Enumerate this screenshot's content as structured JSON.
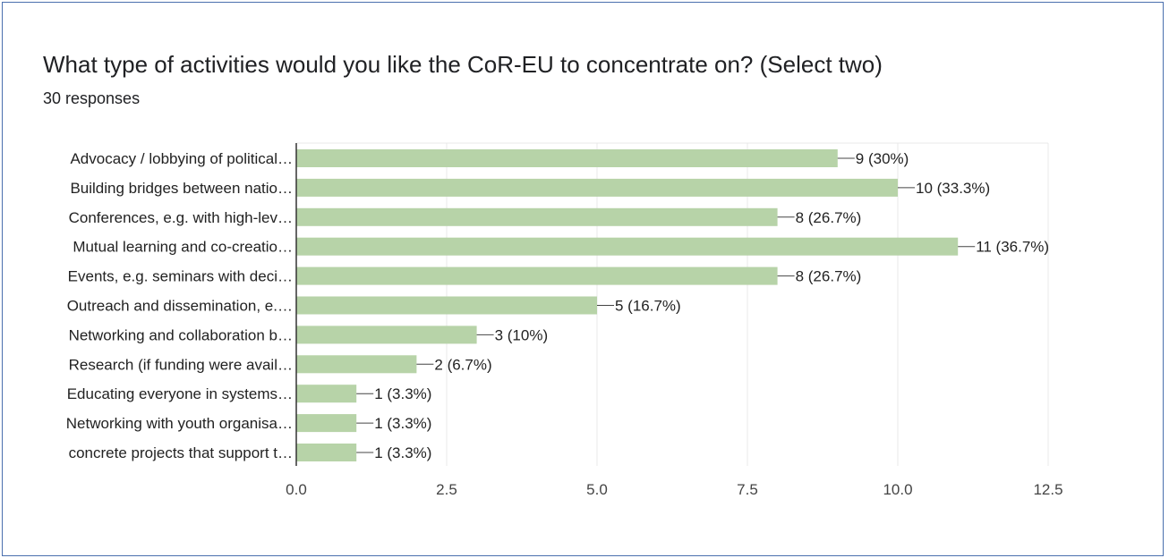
{
  "header": {
    "title": "What type of activities would you like the CoR-EU to concentrate on? (Select two)",
    "responses": "30 responses"
  },
  "colors": {
    "bar": "#b7d3a8",
    "axis": "#333333",
    "grid": "#e8e8e8",
    "text": "#222222"
  },
  "chart_data": {
    "type": "bar",
    "orientation": "horizontal",
    "title": "What type of activities would you like the CoR-EU to concentrate on? (Select two)",
    "subtitle": "30 responses",
    "xlim": [
      0,
      12.5
    ],
    "xticks": [
      "0.0",
      "2.5",
      "5.0",
      "7.5",
      "10.0",
      "12.5"
    ],
    "grid": true,
    "categories": [
      "Advocacy / lobbying of political…",
      "Building bridges between natio…",
      "Conferences, e.g. with high-lev…",
      "Mutual learning and co-creatio…",
      "Events, e.g. seminars with deci…",
      "Outreach and dissemination, e.…",
      "Networking and collaboration b…",
      "Research (if funding were avail…",
      "Educating everyone in systems…",
      "Networking with youth organisa…",
      "concrete projects that support t…"
    ],
    "values": [
      9,
      10,
      8,
      11,
      8,
      5,
      3,
      2,
      1,
      1,
      1
    ],
    "labels": [
      "9 (30%)",
      "10 (33.3%)",
      "8 (26.7%)",
      "11 (36.7%)",
      "8 (26.7%)",
      "5 (16.7%)",
      "3 (10%)",
      "2 (6.7%)",
      "1 (3.3%)",
      "1 (3.3%)",
      "1 (3.3%)"
    ]
  }
}
